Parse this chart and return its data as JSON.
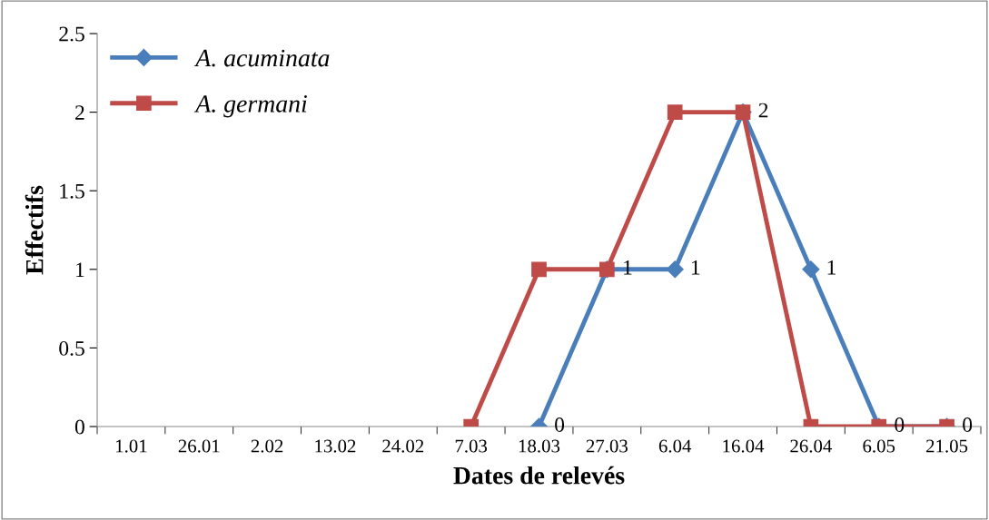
{
  "chart_data": {
    "type": "line",
    "xlabel": "Dates de relevés",
    "ylabel": "Effectifs",
    "categories": [
      "1.01",
      "26.01",
      "2.02",
      "13.02",
      "24.02",
      "7.03",
      "18.03",
      "27.03",
      "6.04",
      "16.04",
      "26.04",
      "6.05",
      "21.05"
    ],
    "series": [
      {
        "name": "A. acuminata",
        "color": "#4a7ebb",
        "marker": "diamond",
        "values": [
          null,
          null,
          null,
          null,
          null,
          null,
          0,
          1,
          1,
          2,
          1,
          0,
          0
        ],
        "value_labels": [
          null,
          null,
          null,
          null,
          null,
          null,
          "0",
          "1",
          "1",
          "2",
          "1",
          "0",
          "0"
        ]
      },
      {
        "name": "A. germani",
        "color": "#be4b48",
        "marker": "square",
        "values": [
          null,
          null,
          null,
          null,
          null,
          0,
          1,
          1,
          2,
          2,
          0,
          0,
          0
        ]
      }
    ],
    "ylim": [
      0,
      2.5
    ],
    "yticks": [
      0,
      0.5,
      1,
      1.5,
      2,
      2.5
    ],
    "grid": false,
    "legend": "top left",
    "line_style": "solid"
  }
}
